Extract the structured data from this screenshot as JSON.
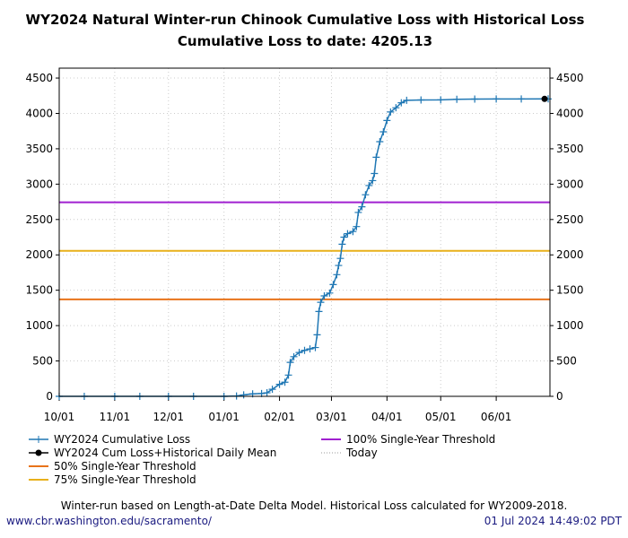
{
  "header": {
    "title_line1": "WY2024 Natural Winter-run Chinook Cumulative Loss with Historical Loss",
    "title_line2": "Cumulative Loss to date: 4205.13"
  },
  "chart_data": {
    "type": "line",
    "title": "WY2024 Natural Winter-run Chinook Cumulative Loss with Historical Loss",
    "subtitle": "Cumulative Loss to date: 4205.13",
    "xlim": [
      "2023-10-01",
      "2024-07-01"
    ],
    "ylim": [
      0,
      4640
    ],
    "x_ticks": [
      {
        "date": "2023-10-01",
        "label": "10/01"
      },
      {
        "date": "2023-11-01",
        "label": "11/01"
      },
      {
        "date": "2023-12-01",
        "label": "12/01"
      },
      {
        "date": "2024-01-01",
        "label": "01/01"
      },
      {
        "date": "2024-02-01",
        "label": "02/01"
      },
      {
        "date": "2024-03-01",
        "label": "03/01"
      },
      {
        "date": "2024-04-01",
        "label": "04/01"
      },
      {
        "date": "2024-05-01",
        "label": "05/01"
      },
      {
        "date": "2024-06-01",
        "label": "06/01"
      }
    ],
    "y_ticks": [
      0,
      500,
      1000,
      1500,
      2000,
      2500,
      3000,
      3500,
      4000,
      4500
    ],
    "grid": true,
    "legend_placement": "below",
    "series": [
      {
        "name": "WY2024 Cumulative Loss",
        "color": "#1f77b4",
        "marker": "plus",
        "points": [
          [
            "2023-10-01",
            0
          ],
          [
            "2023-10-15",
            0
          ],
          [
            "2023-11-01",
            0
          ],
          [
            "2023-11-15",
            0
          ],
          [
            "2023-12-01",
            0
          ],
          [
            "2023-12-15",
            0
          ],
          [
            "2024-01-01",
            0
          ],
          [
            "2024-01-08",
            5
          ],
          [
            "2024-01-12",
            20
          ],
          [
            "2024-01-17",
            35
          ],
          [
            "2024-01-22",
            40
          ],
          [
            "2024-01-25",
            50
          ],
          [
            "2024-01-28",
            100
          ],
          [
            "2024-02-01",
            170
          ],
          [
            "2024-02-04",
            200
          ],
          [
            "2024-02-06",
            300
          ],
          [
            "2024-02-07",
            480
          ],
          [
            "2024-02-09",
            560
          ],
          [
            "2024-02-12",
            620
          ],
          [
            "2024-02-15",
            650
          ],
          [
            "2024-02-18",
            670
          ],
          [
            "2024-02-21",
            690
          ],
          [
            "2024-02-22",
            870
          ],
          [
            "2024-02-23",
            1200
          ],
          [
            "2024-02-24",
            1330
          ],
          [
            "2024-02-26",
            1420
          ],
          [
            "2024-02-29",
            1460
          ],
          [
            "2024-03-02",
            1580
          ],
          [
            "2024-03-04",
            1720
          ],
          [
            "2024-03-05",
            1850
          ],
          [
            "2024-03-06",
            1950
          ],
          [
            "2024-03-07",
            2150
          ],
          [
            "2024-03-08",
            2250
          ],
          [
            "2024-03-10",
            2300
          ],
          [
            "2024-03-13",
            2330
          ],
          [
            "2024-03-15",
            2400
          ],
          [
            "2024-03-16",
            2600
          ],
          [
            "2024-03-18",
            2680
          ],
          [
            "2024-03-20",
            2850
          ],
          [
            "2024-03-22",
            2980
          ],
          [
            "2024-03-24",
            3050
          ],
          [
            "2024-03-25",
            3150
          ],
          [
            "2024-03-26",
            3380
          ],
          [
            "2024-03-28",
            3600
          ],
          [
            "2024-03-30",
            3740
          ],
          [
            "2024-04-01",
            3900
          ],
          [
            "2024-04-03",
            4020
          ],
          [
            "2024-04-06",
            4080
          ],
          [
            "2024-04-09",
            4150
          ],
          [
            "2024-04-12",
            4185
          ],
          [
            "2024-04-20",
            4190
          ],
          [
            "2024-05-01",
            4192
          ],
          [
            "2024-05-10",
            4200
          ],
          [
            "2024-05-20",
            4203
          ],
          [
            "2024-06-01",
            4204
          ],
          [
            "2024-06-15",
            4205
          ],
          [
            "2024-06-30",
            4205.13
          ]
        ]
      },
      {
        "name": "WY2024 Cum Loss+Historical Daily Mean",
        "color": "#000000",
        "marker": "dot",
        "points": [
          [
            "2024-06-30",
            4205.13
          ]
        ]
      }
    ],
    "thresholds": [
      {
        "name": "50% Single-Year Threshold",
        "value": 1371,
        "color": "#e8731a"
      },
      {
        "name": "75% Single-Year Threshold",
        "value": 2057,
        "color": "#e8b01a"
      },
      {
        "name": "100% Single-Year Threshold",
        "value": 2743,
        "color": "#a020d0"
      }
    ],
    "today": {
      "name": "Today",
      "date": "2024-07-01",
      "color": "#999999"
    }
  },
  "legend": [
    "WY2024 Cumulative Loss",
    "WY2024 Cum Loss+Historical Daily Mean",
    "50% Single-Year Threshold",
    "75% Single-Year Threshold",
    "100% Single-Year Threshold",
    "Today"
  ],
  "footer": {
    "note": "Winter-run based on Length-at-Date Delta Model. Historical Loss calculated for WY2009-2018.",
    "url": "www.cbr.washington.edu/sacramento/",
    "timestamp": "01 Jul 2024 14:49:02 PDT"
  }
}
